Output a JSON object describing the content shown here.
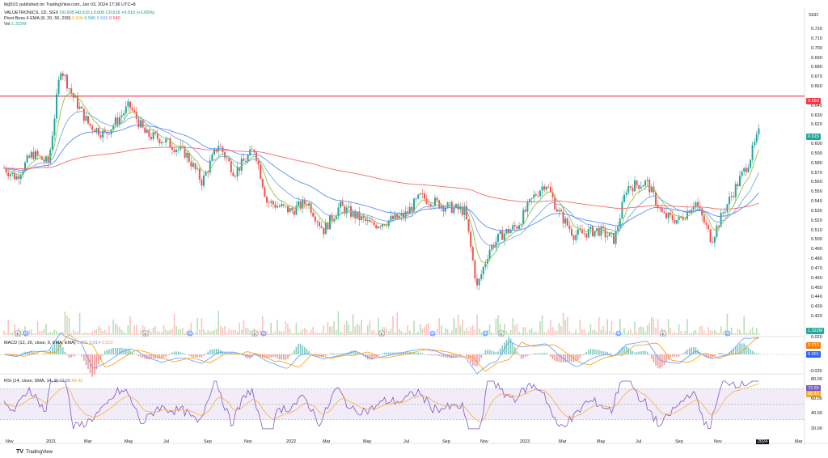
{
  "published_line": "tkijf101 published on TradingView.com, Jan 03, 2024 17:36 UTC+8",
  "symbol_line": {
    "name": "VALUETRONICS, 1D, SGX",
    "ohlc": "O0.605 H0.615 L0.605 C0.615 +0.010 (+1.65%)"
  },
  "pivot_line": {
    "label": "Pivot Boss 4 EMA (8, 20, 50, 200)",
    "v1": "0.606",
    "v2": "0.586",
    "v3": "0.565",
    "v4": "0.540"
  },
  "vol_line": {
    "label": "Vol",
    "value": "1.322M"
  },
  "macd_line": {
    "label": "MACD (12, 26, close, 9, EMA, EMA)",
    "v1": "0.001",
    "v2": "0.014",
    "v3": "0.013"
  },
  "rsi_line": {
    "label": "RSI (14, close, SMA, 14, 2)",
    "v1": "72.55",
    "v2": "68.42"
  },
  "currency": "SGD",
  "price_ticks": [
    "0.720",
    "0.710",
    "0.700",
    "0.690",
    "0.680",
    "0.670",
    "0.660",
    "0.640",
    "0.630",
    "0.620",
    "0.600",
    "0.590",
    "0.580",
    "0.570",
    "0.560",
    "0.550",
    "0.540",
    "0.530",
    "0.520",
    "0.510",
    "0.500",
    "0.490",
    "0.480",
    "0.470",
    "0.460",
    "0.450",
    "0.440",
    "0.430",
    "0.420"
  ],
  "badges": {
    "resistance": "0.650",
    "last": "0.615",
    "vol": "1.322M",
    "macd_orange": "0.013",
    "macd_blue": "0.001",
    "rsi_top": "72.55",
    "rsi_2": "68.42"
  },
  "macd_ticks": [
    "0.020",
    "-0.020"
  ],
  "rsi_ticks": [
    "80.00",
    "60.00",
    "40.00",
    "20.00"
  ],
  "time_labels": [
    "Nov",
    "2021",
    "Mar",
    "May",
    "Jul",
    "Sep",
    "Nov",
    "2022",
    "Mar",
    "May",
    "Jul",
    "Sep",
    "Nov",
    "2023",
    "Mar",
    "May",
    "Jul",
    "Sep",
    "Nov",
    "2024",
    "Mar"
  ],
  "event_markers": [
    "E",
    "D",
    "E",
    "D",
    "E",
    "D",
    "E",
    "D",
    "D",
    "E",
    "D",
    "E",
    "D"
  ],
  "brand": "TradingView",
  "colors": {
    "up": "#26a69a",
    "down": "#ef5350",
    "ema8": "#8bc34a",
    "ema20": "#7aa7e8",
    "ema50": "#5b8def",
    "ema200": "#f26b6b",
    "resistance": "#f23645",
    "macd": "#5b9cf6",
    "signal": "#ff9800",
    "rsi": "#7e57c2"
  }
}
